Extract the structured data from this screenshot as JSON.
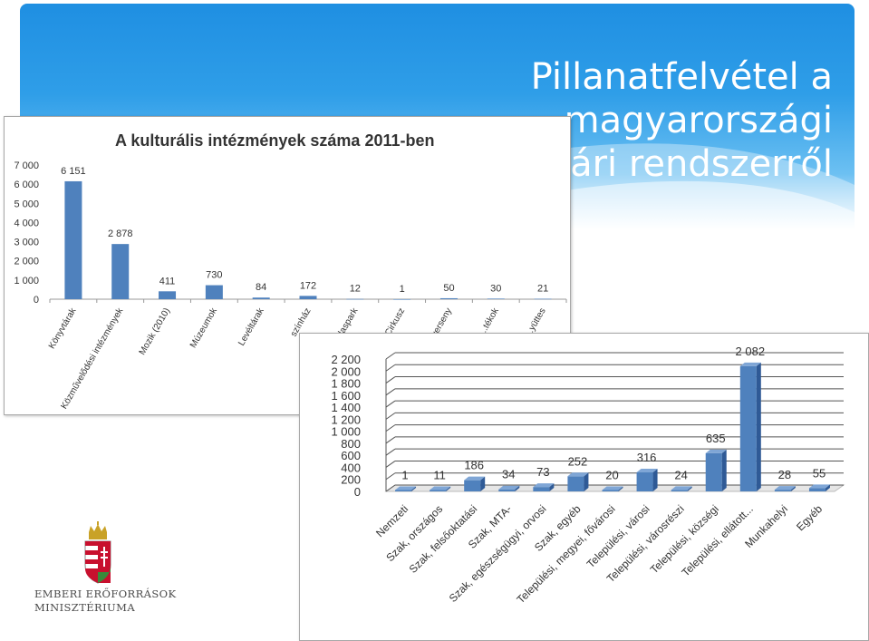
{
  "slide": {
    "title_line1": "Pillanatfelvétel a magyarországi",
    "title_line2": "könyvtári rendszerről",
    "ministry_line1": "EMBERI ERŐFORRÁSOK",
    "ministry_line2": "MINISZTÉRIUMA"
  },
  "colors": {
    "bar": "#4f81bd",
    "bar_dark": "#2f5a96",
    "header": "#1f8fe2"
  },
  "chart_data": [
    {
      "type": "bar",
      "title": "A kulturális intézmények száma 2011-ben",
      "categories": [
        "Könyvtárak",
        "Közművelődési intézmények",
        "Mozik (2010)",
        "Múzeumok",
        "Levéltárak",
        "Színház",
        "Állatkert, vadaspark",
        "Cirkusz",
        "Zenei együttes, verseny",
        "Zenei és táncos intézetek",
        "Tánc együttes"
      ],
      "category_labels": [
        "Könyvtárak",
        "Közművelődési intézmények",
        "Mozik (2010)",
        "Múzeumok",
        "Levéltárak",
        "színház",
        "Állat...kert, vadaspark",
        "Cirkusz",
        "...verseny",
        "...tékok",
        "...yüttes"
      ],
      "values": [
        6151,
        2878,
        411,
        730,
        84,
        172,
        12,
        1,
        50,
        30,
        21
      ],
      "value_labels": [
        "6 151",
        "2 878",
        "411",
        "730",
        "84",
        "172",
        "12",
        "1",
        "50",
        "30",
        "21"
      ],
      "yticks": [
        "0",
        "1 000",
        "2 000",
        "3 000",
        "4 000",
        "5 000",
        "6 000",
        "7 000"
      ],
      "ylim": [
        0,
        7000
      ],
      "grid": false
    },
    {
      "type": "bar",
      "style": "3d",
      "categories": [
        "Nemzeti",
        "Szak, országos",
        "Szak, felsőoktatási",
        "Szak, MTA-",
        "Szak, egészségügyi, orvosi",
        "Szak, egyéb",
        "Települési, megyei, fővárosi",
        "Települési, városi",
        "Települési, városrészi",
        "Települési, községi",
        "Települési, ellátott...",
        "Munkahelyi",
        "Egyéb"
      ],
      "values": [
        1,
        11,
        186,
        34,
        73,
        252,
        20,
        316,
        24,
        635,
        2082,
        28,
        55
      ],
      "value_labels": [
        "1",
        "11",
        "186",
        "34",
        "73",
        "252",
        "20",
        "316",
        "24",
        "635",
        "2 082",
        "28",
        "55"
      ],
      "yticks": [
        "0",
        "200",
        "400",
        "600",
        "800",
        "1 000",
        "1 200",
        "1 400",
        "1 600",
        "1 800",
        "2 000",
        "2 200"
      ],
      "ylim": [
        0,
        2200
      ],
      "grid": true
    }
  ]
}
